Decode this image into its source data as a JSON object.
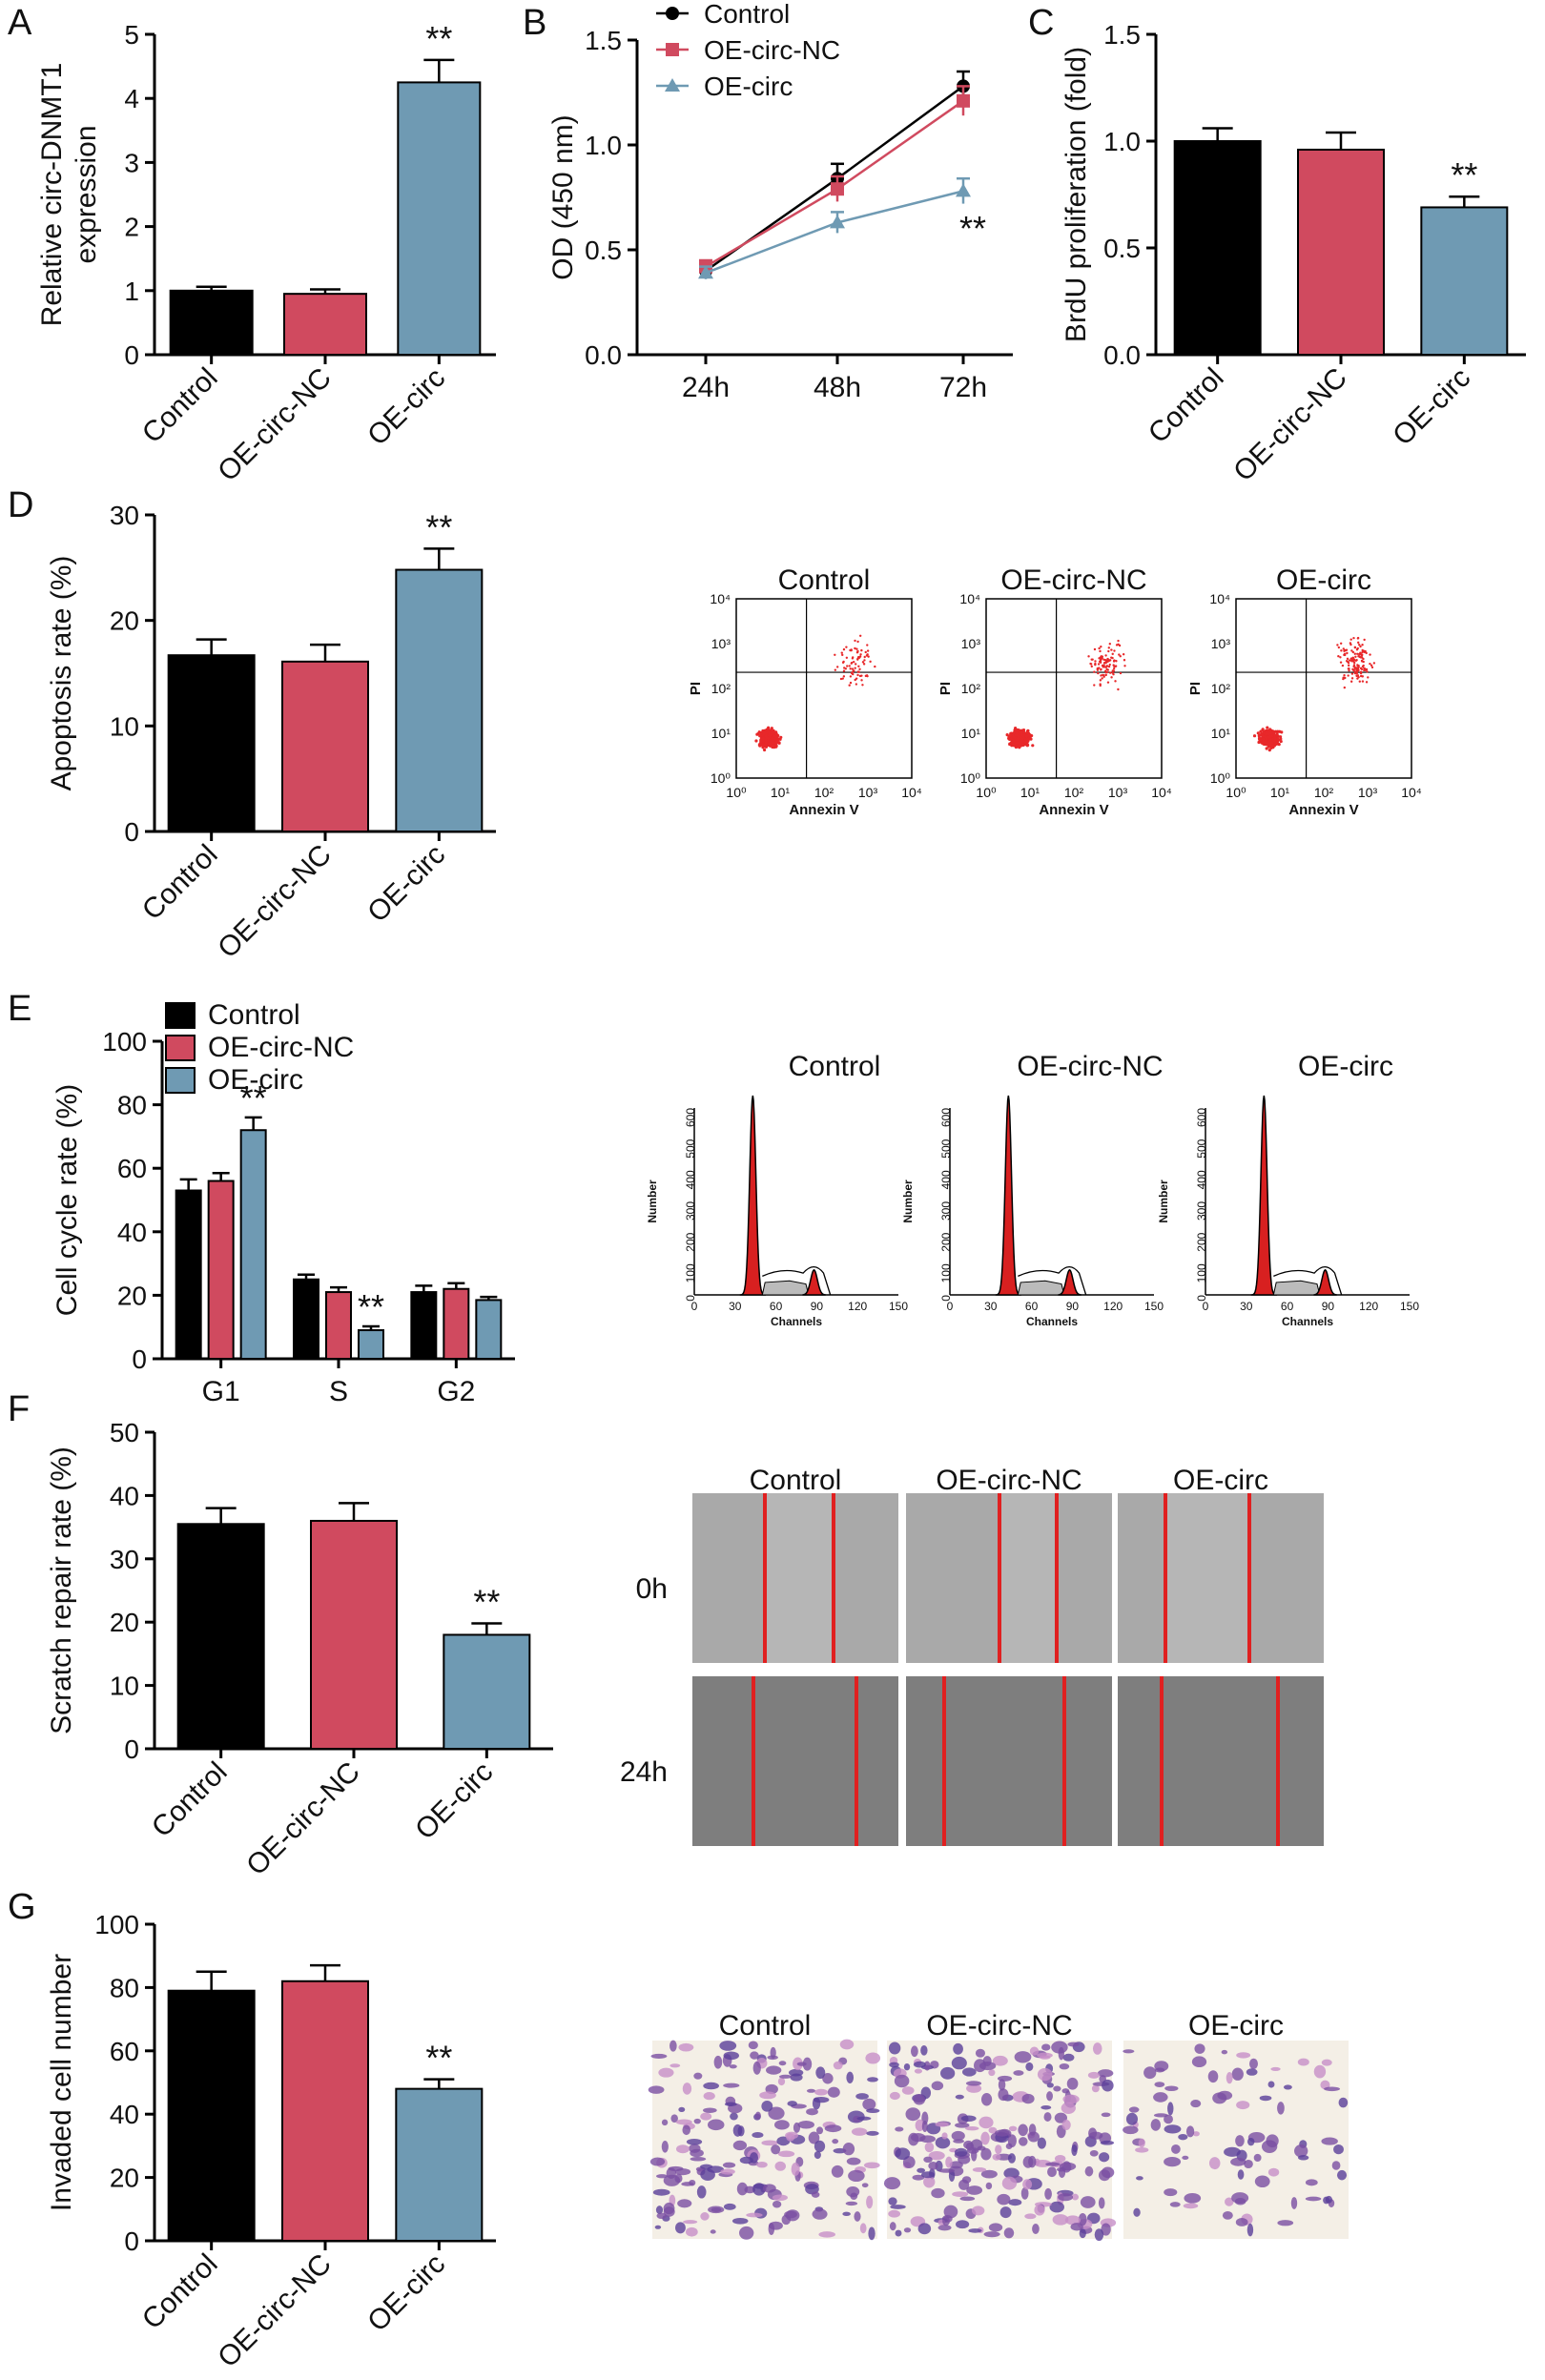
{
  "colors": {
    "control": "#000000",
    "nc": "#d04a5f",
    "circ": "#6f9ab3",
    "axis": "#000000",
    "flow_dot": "#e8282a",
    "hist_fill": "#d82020",
    "scratch_line": "#e02020"
  },
  "chart_data": [
    {
      "panel": "A",
      "type": "bar",
      "categories": [
        "Control",
        "OE-circ-NC",
        "OE-circ"
      ],
      "values": [
        1.0,
        0.95,
        4.25
      ],
      "errors": [
        0.06,
        0.07,
        0.35
      ],
      "ylabel": "Relative circ-DNMT1 expression",
      "ylabel_lines": [
        "Relative circ-DNMT1",
        "expression"
      ],
      "ylim": [
        0,
        5
      ],
      "yticks": [
        "0",
        "1",
        "2",
        "3",
        "4",
        "5"
      ],
      "annotations": [
        {
          "category": "OE-circ",
          "text": "**"
        }
      ]
    },
    {
      "panel": "B",
      "type": "line",
      "categories": [
        "24h",
        "48h",
        "72h"
      ],
      "series": [
        {
          "name": "Control",
          "values": [
            0.4,
            0.84,
            1.28
          ],
          "errors": [
            0.03,
            0.07,
            0.07
          ]
        },
        {
          "name": "OE-circ-NC",
          "values": [
            0.42,
            0.79,
            1.21
          ],
          "errors": [
            0.03,
            0.06,
            0.07
          ]
        },
        {
          "name": "OE-circ",
          "values": [
            0.39,
            0.63,
            0.78
          ],
          "errors": [
            0.03,
            0.05,
            0.06
          ]
        }
      ],
      "ylabel": "OD (450 nm)",
      "ylim": [
        0,
        1.5
      ],
      "yticks": [
        "0.0",
        "0.5",
        "1.0",
        "1.5"
      ],
      "annotations": [
        {
          "text": "**"
        }
      ]
    },
    {
      "panel": "C",
      "type": "bar",
      "categories": [
        "Control",
        "OE-circ-NC",
        "OE-circ"
      ],
      "values": [
        1.0,
        0.96,
        0.69
      ],
      "errors": [
        0.06,
        0.08,
        0.05
      ],
      "ylabel": "BrdU proliferation (fold)",
      "ylim": [
        0,
        1.5
      ],
      "yticks": [
        "0.0",
        "0.5",
        "1.0",
        "1.5"
      ],
      "annotations": [
        {
          "category": "OE-circ",
          "text": "**"
        }
      ]
    },
    {
      "panel": "D",
      "type": "bar",
      "categories": [
        "Control",
        "OE-circ-NC",
        "OE-circ"
      ],
      "values": [
        16.7,
        16.1,
        24.8
      ],
      "errors": [
        1.5,
        1.6,
        2.0
      ],
      "ylabel": "Apoptosis rate (%)",
      "ylim": [
        0,
        30
      ],
      "yticks": [
        "0",
        "10",
        "20",
        "30"
      ],
      "annotations": [
        {
          "category": "OE-circ",
          "text": "**"
        }
      ]
    },
    {
      "panel": "E",
      "type": "bar",
      "categories": [
        "G1",
        "S",
        "G2"
      ],
      "series": [
        {
          "name": "Control",
          "values": [
            53,
            25,
            21
          ],
          "errors": [
            3.5,
            1.5,
            2.0
          ]
        },
        {
          "name": "OE-circ-NC",
          "values": [
            56,
            21,
            22
          ],
          "errors": [
            2.5,
            1.5,
            1.8
          ]
        },
        {
          "name": "OE-circ",
          "values": [
            72,
            9,
            18.5
          ],
          "errors": [
            4,
            1.2,
            1.0
          ]
        }
      ],
      "ylabel": "Cell cycle rate (%)",
      "ylim": [
        0,
        100
      ],
      "yticks": [
        "0",
        "20",
        "40",
        "60",
        "80",
        "100"
      ],
      "annotations": [
        {
          "category": "G1",
          "series": "OE-circ",
          "text": "**"
        },
        {
          "category": "S",
          "series": "OE-circ",
          "text": "**"
        }
      ]
    },
    {
      "panel": "F",
      "type": "bar",
      "categories": [
        "Control",
        "OE-circ-NC",
        "OE-circ"
      ],
      "values": [
        35.5,
        36.0,
        18.0
      ],
      "errors": [
        2.5,
        2.8,
        1.8
      ],
      "ylabel": "Scratch repair rate (%)",
      "ylim": [
        0,
        50
      ],
      "yticks": [
        "0",
        "10",
        "20",
        "30",
        "40",
        "50"
      ],
      "annotations": [
        {
          "category": "OE-circ",
          "text": "**"
        }
      ]
    },
    {
      "panel": "G",
      "type": "bar",
      "categories": [
        "Control",
        "OE-circ-NC",
        "OE-circ"
      ],
      "values": [
        79,
        82,
        48
      ],
      "errors": [
        6,
        5,
        3
      ],
      "ylabel": "Invaded cell number",
      "ylim": [
        0,
        100
      ],
      "yticks": [
        "0",
        "20",
        "40",
        "60",
        "80",
        "100"
      ],
      "annotations": [
        {
          "category": "OE-circ",
          "text": "**"
        }
      ]
    }
  ],
  "panels": {
    "A": "A",
    "B": "B",
    "C": "C",
    "D": "D",
    "E": "E",
    "F": "F",
    "G": "G"
  },
  "flow": {
    "titles": [
      "Control",
      "OE-circ-NC",
      "OE-circ"
    ],
    "xlabel": "Annexin V",
    "ylabel": "PI",
    "ticks": [
      "10⁰",
      "10¹",
      "10²",
      "10³",
      "10⁴"
    ]
  },
  "cellcycle": {
    "titles": [
      "Control",
      "OE-circ-NC",
      "OE-circ"
    ],
    "xlabel": "Channels",
    "ylabel": "Number",
    "xticks": [
      "0",
      "30",
      "60",
      "90",
      "120",
      "150"
    ],
    "yticks": [
      "0",
      "100",
      "200",
      "300",
      "400",
      "500",
      "600"
    ]
  },
  "scratch": {
    "titles": [
      "Control",
      "OE-circ-NC",
      "OE-circ"
    ],
    "rows": [
      "0h",
      "24h"
    ]
  },
  "invasion": {
    "titles": [
      "Control",
      "OE-circ-NC",
      "OE-circ"
    ]
  }
}
